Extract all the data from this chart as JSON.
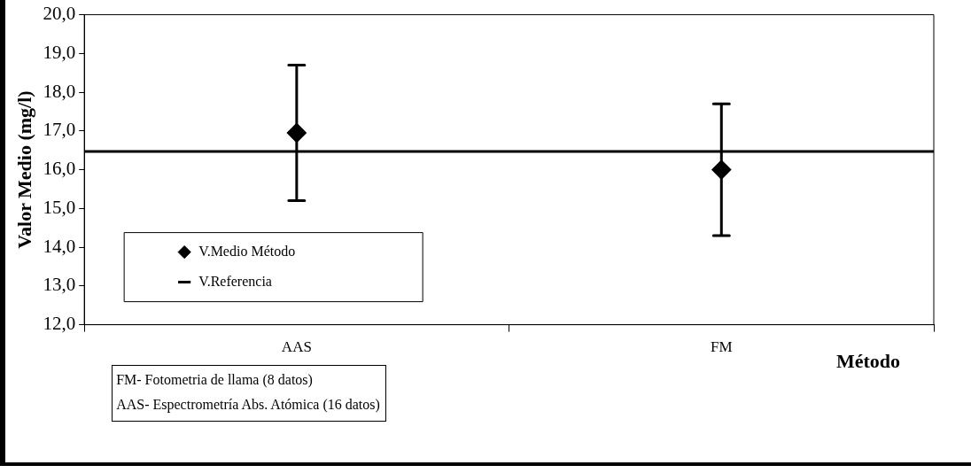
{
  "chart_data": {
    "type": "scatter",
    "categories": [
      "AAS",
      "FM"
    ],
    "series": [
      {
        "name": "V.Medio Método",
        "color": "#000000",
        "values": [
          16.95,
          16.0
        ],
        "errors": [
          [
            15.2,
            18.7
          ],
          [
            14.3,
            17.7
          ]
        ]
      }
    ],
    "marker": "diamond",
    "ylabel": "Valor Medio (mg/l)",
    "xlabel": "Método",
    "ylim": [
      12,
      20
    ],
    "yticks": [
      {
        "value": 12,
        "label": "12,0"
      },
      {
        "value": 13,
        "label": "13,0"
      },
      {
        "value": 14,
        "label": "14,0"
      },
      {
        "value": 15,
        "label": "15,0"
      },
      {
        "value": 16,
        "label": "16,0"
      },
      {
        "value": 17,
        "label": "17,0"
      },
      {
        "value": 18,
        "label": "18,0"
      },
      {
        "value": 19,
        "label": "19,0"
      },
      {
        "value": 20,
        "label": "20,0"
      }
    ],
    "ref_lines": [
      {
        "axis": "y",
        "value": 16.47,
        "label": "V.Referencia",
        "color": "#000000",
        "line_style": "solid"
      }
    ],
    "legend": "bottom left",
    "grid": false,
    "annotations": [
      "FM- Fotometria de llama (8 datos)",
      "AAS- Espectrometría Abs. Atómica (16 datos)"
    ]
  }
}
